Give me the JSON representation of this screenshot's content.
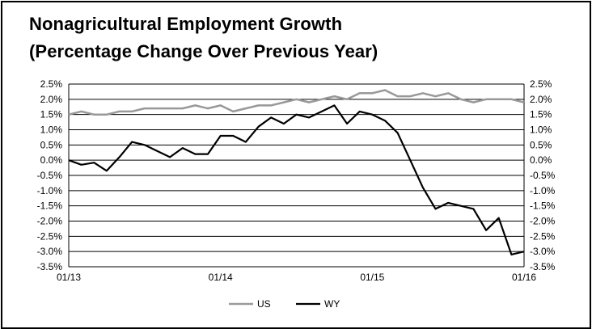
{
  "chart_data": {
    "type": "line",
    "title": "Nonagricultural Employment Growth",
    "subtitle": "(Percentage Change Over Previous Year)",
    "xlabel": "",
    "ylabel": "",
    "x_tick_labels": [
      "01/13",
      "01/14",
      "01/15",
      "01/16"
    ],
    "y_tick_labels": [
      "2.5%",
      "2.0%",
      "1.5%",
      "1.0%",
      "0.5%",
      "0.0%",
      "-0.5%",
      "-1.0%",
      "-1.5%",
      "-2.0%",
      "-2.5%",
      "-3.0%",
      "-3.5%"
    ],
    "ylim": [
      -3.5,
      2.5
    ],
    "grid": true,
    "legend_position": "bottom",
    "x": [
      "01/13",
      "02/13",
      "03/13",
      "04/13",
      "05/13",
      "06/13",
      "07/13",
      "08/13",
      "09/13",
      "10/13",
      "11/13",
      "12/13",
      "01/14",
      "02/14",
      "03/14",
      "04/14",
      "05/14",
      "06/14",
      "07/14",
      "08/14",
      "09/14",
      "10/14",
      "11/14",
      "12/14",
      "01/15",
      "02/15",
      "03/15",
      "04/15",
      "05/15",
      "06/15",
      "07/15",
      "08/15",
      "09/15",
      "10/15",
      "11/15",
      "12/15",
      "01/16"
    ],
    "series": [
      {
        "name": "US",
        "color": "#999999",
        "values": [
          1.5,
          1.6,
          1.5,
          1.5,
          1.6,
          1.6,
          1.7,
          1.7,
          1.7,
          1.7,
          1.8,
          1.7,
          1.8,
          1.6,
          1.7,
          1.8,
          1.8,
          1.9,
          2.0,
          1.9,
          2.0,
          2.1,
          2.0,
          2.2,
          2.2,
          2.3,
          2.1,
          2.1,
          2.2,
          2.1,
          2.2,
          2.0,
          1.9,
          2.0,
          2.0,
          2.0,
          1.9
        ]
      },
      {
        "name": "WY",
        "color": "#000000",
        "values": [
          0.0,
          -0.15,
          -0.08,
          -0.35,
          0.1,
          0.6,
          0.5,
          0.3,
          0.1,
          0.4,
          0.2,
          0.2,
          0.8,
          0.8,
          0.6,
          1.1,
          1.4,
          1.2,
          1.5,
          1.4,
          1.6,
          1.8,
          1.2,
          1.6,
          1.5,
          1.3,
          0.9,
          0.0,
          -0.9,
          -1.6,
          -1.4,
          -1.5,
          -1.6,
          -2.3,
          -1.9,
          -3.1,
          -3.0
        ]
      }
    ]
  }
}
